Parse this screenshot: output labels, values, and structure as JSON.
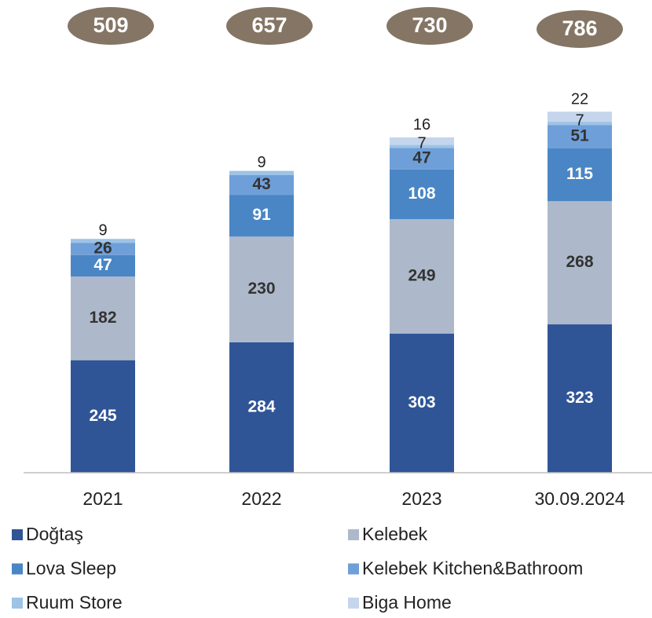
{
  "chart_data": {
    "type": "stacked_bar",
    "categories": [
      "2021",
      "2022",
      "2023",
      "30.09.2024"
    ],
    "totals": [
      509,
      657,
      730,
      786
    ],
    "totals_color": "#857565",
    "series": [
      {
        "name": "Doğtaş",
        "color": "#2f5597",
        "values": [
          245,
          284,
          303,
          323
        ]
      },
      {
        "name": "Kelebek",
        "color": "#adb9ca",
        "values": [
          182,
          230,
          249,
          268
        ]
      },
      {
        "name": "Lova Sleep",
        "color": "#4a86c5",
        "values": [
          47,
          91,
          108,
          115
        ]
      },
      {
        "name": "Kelebek Kitchen&Bathroom",
        "color": "#6f9fd8",
        "values": [
          26,
          43,
          47,
          51
        ]
      },
      {
        "name": "Ruum Store",
        "color": "#9dc3e6",
        "values": [
          9,
          9,
          7,
          7
        ]
      },
      {
        "name": "Biga Home",
        "color": "#c5d5ec",
        "values": [
          null,
          null,
          16,
          22
        ]
      }
    ],
    "ylim": [
      0,
      800
    ]
  }
}
